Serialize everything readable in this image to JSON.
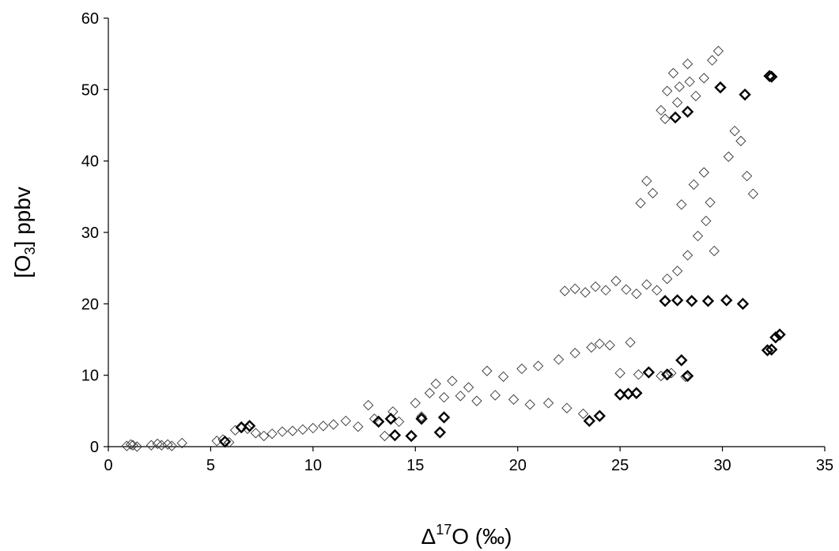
{
  "chart_data": {
    "type": "scatter",
    "title": "",
    "xlabel": "Δ17O (‰)",
    "xlabel_parts": {
      "delta": "Δ",
      "sup": "17",
      "rest": "O (‰)"
    },
    "ylabel": "[O3] ppbv",
    "ylabel_parts": {
      "open": "[O",
      "sub": "3",
      "close": "] ppbv"
    },
    "xlim": [
      0,
      35
    ],
    "ylim": [
      0,
      60
    ],
    "xticks": [
      0,
      5,
      10,
      15,
      20,
      25,
      30,
      35
    ],
    "yticks": [
      0,
      10,
      20,
      30,
      40,
      50,
      60
    ],
    "xtick_labels": [
      "0",
      "5",
      "10",
      "15",
      "20",
      "25",
      "30",
      "35"
    ],
    "ytick_labels": [
      "0",
      "10",
      "20",
      "30",
      "40",
      "50",
      "60"
    ],
    "marker": "open-diamond",
    "color": "#000000",
    "grid": false,
    "legend": "none",
    "series": [
      {
        "points": [
          [
            0.9,
            0.1
          ],
          [
            1.2,
            0.2
          ],
          [
            1.4,
            0.0
          ],
          [
            1.1,
            0.3
          ],
          [
            2.1,
            0.2
          ],
          [
            2.4,
            0.4
          ],
          [
            2.6,
            0.2
          ],
          [
            2.9,
            0.3
          ],
          [
            3.1,
            0.1
          ],
          [
            3.6,
            0.5
          ],
          [
            5.3,
            0.8
          ],
          [
            5.6,
            1.0
          ],
          [
            5.9,
            0.6
          ],
          [
            6.2,
            2.3
          ],
          [
            6.5,
            2.8
          ],
          [
            6.8,
            2.5
          ],
          [
            7.2,
            1.9
          ],
          [
            7.6,
            1.5
          ],
          [
            8.0,
            1.8
          ],
          [
            8.5,
            2.1
          ],
          [
            9.0,
            2.2
          ],
          [
            9.5,
            2.4
          ],
          [
            10.0,
            2.6
          ],
          [
            10.5,
            2.9
          ],
          [
            11.0,
            3.1
          ],
          [
            11.6,
            3.6
          ],
          [
            12.2,
            2.8
          ],
          [
            12.7,
            5.8
          ],
          [
            13.0,
            3.9
          ],
          [
            13.5,
            1.5
          ],
          [
            13.9,
            4.9
          ],
          [
            14.2,
            3.5
          ],
          [
            14.8,
            1.4
          ],
          [
            15.0,
            6.1
          ],
          [
            15.3,
            4.2
          ],
          [
            15.7,
            7.5
          ],
          [
            16.0,
            8.8
          ],
          [
            16.4,
            6.9
          ],
          [
            16.8,
            9.2
          ],
          [
            17.2,
            7.1
          ],
          [
            17.6,
            8.3
          ],
          [
            18.0,
            6.4
          ],
          [
            18.5,
            10.6
          ],
          [
            18.9,
            7.2
          ],
          [
            19.3,
            9.8
          ],
          [
            19.8,
            6.6
          ],
          [
            20.2,
            10.9
          ],
          [
            20.6,
            5.9
          ],
          [
            21.0,
            11.3
          ],
          [
            21.5,
            6.1
          ],
          [
            22.0,
            12.2
          ],
          [
            22.4,
            5.4
          ],
          [
            22.8,
            13.1
          ],
          [
            23.2,
            4.6
          ],
          [
            23.6,
            13.9
          ],
          [
            24.0,
            14.4
          ],
          [
            24.5,
            14.2
          ],
          [
            25.0,
            10.3
          ],
          [
            25.5,
            14.6
          ],
          [
            25.9,
            10.1
          ],
          [
            26.4,
            10.5
          ],
          [
            27.0,
            9.9
          ],
          [
            27.5,
            10.3
          ],
          [
            28.2,
            9.8
          ],
          [
            22.3,
            21.8
          ],
          [
            22.8,
            22.1
          ],
          [
            23.3,
            21.6
          ],
          [
            23.8,
            22.4
          ],
          [
            24.3,
            21.9
          ],
          [
            24.8,
            23.2
          ],
          [
            25.3,
            22.0
          ],
          [
            25.8,
            21.4
          ],
          [
            26.3,
            22.7
          ],
          [
            26.8,
            21.9
          ],
          [
            27.3,
            23.5
          ],
          [
            27.8,
            24.6
          ],
          [
            28.3,
            26.8
          ],
          [
            28.8,
            29.5
          ],
          [
            29.2,
            31.6
          ],
          [
            29.6,
            27.4
          ],
          [
            28.0,
            33.9
          ],
          [
            28.6,
            36.7
          ],
          [
            29.1,
            38.4
          ],
          [
            29.4,
            34.2
          ],
          [
            26.0,
            34.1
          ],
          [
            26.3,
            37.2
          ],
          [
            26.6,
            35.5
          ],
          [
            30.3,
            40.6
          ],
          [
            30.6,
            44.2
          ],
          [
            30.9,
            42.8
          ],
          [
            31.2,
            37.9
          ],
          [
            31.5,
            35.4
          ],
          [
            27.0,
            47.1
          ],
          [
            27.3,
            49.8
          ],
          [
            27.6,
            52.3
          ],
          [
            27.9,
            50.4
          ],
          [
            28.3,
            53.6
          ],
          [
            28.7,
            49.1
          ],
          [
            29.1,
            51.6
          ],
          [
            29.5,
            54.1
          ],
          [
            29.8,
            55.4
          ],
          [
            27.2,
            45.9
          ],
          [
            27.8,
            48.2
          ],
          [
            28.4,
            51.1
          ]
        ]
      },
      {
        "name_visible": false,
        "points": [
          [
            5.7,
            0.7
          ],
          [
            6.5,
            2.7
          ],
          [
            6.9,
            2.9
          ],
          [
            13.2,
            3.5
          ],
          [
            13.8,
            3.9
          ],
          [
            14.0,
            1.6
          ],
          [
            14.8,
            1.5
          ],
          [
            15.3,
            3.9
          ],
          [
            16.2,
            2.0
          ],
          [
            16.4,
            4.1
          ],
          [
            23.5,
            3.6
          ],
          [
            24.0,
            4.3
          ],
          [
            25.0,
            7.3
          ],
          [
            25.4,
            7.4
          ],
          [
            25.8,
            7.5
          ],
          [
            26.4,
            10.4
          ],
          [
            27.3,
            10.1
          ],
          [
            28.0,
            12.1
          ],
          [
            28.3,
            9.9
          ],
          [
            27.2,
            20.4
          ],
          [
            27.8,
            20.5
          ],
          [
            28.5,
            20.4
          ],
          [
            29.3,
            20.4
          ],
          [
            30.2,
            20.5
          ],
          [
            31.0,
            20.0
          ],
          [
            29.9,
            50.3
          ],
          [
            31.1,
            49.3
          ],
          [
            28.3,
            46.9
          ],
          [
            27.7,
            46.1
          ],
          [
            32.2,
            13.5
          ],
          [
            32.4,
            13.6
          ],
          [
            32.6,
            15.3
          ],
          [
            32.8,
            15.7
          ],
          [
            32.3,
            51.9
          ],
          [
            32.4,
            51.8
          ]
        ]
      }
    ]
  }
}
